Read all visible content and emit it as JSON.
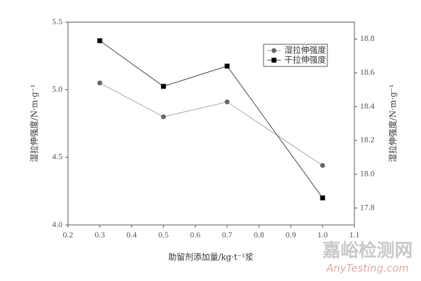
{
  "chart_data": {
    "type": "line",
    "x_label": "助留剂添加量/kg·t⁻¹浆",
    "y_label": "湿拉伸强度/N·m·g⁻¹",
    "y2_label": "湿拉伸强度/N·m·g⁻¹",
    "x": [
      0.3,
      0.5,
      0.7,
      1.0
    ],
    "series": [
      {
        "name": "湿拉伸强度",
        "color": "#666666",
        "line_color": "#aaaaaa",
        "marker": "circle",
        "values": [
          5.05,
          4.8,
          4.91,
          4.44
        ]
      },
      {
        "name": "干拉伸强度",
        "color": "#000000",
        "line_color": "#444444",
        "marker": "square",
        "axis": "y2",
        "values": [
          18.79,
          18.52,
          18.64,
          17.86
        ]
      }
    ],
    "xlim": [
      0.2,
      1.1
    ],
    "xticks": [
      0.2,
      0.3,
      0.4,
      0.5,
      0.6,
      0.7,
      0.8,
      0.9,
      {
        "value": 1.0,
        "label": "1.0"
      },
      1.1
    ],
    "ylim": [
      4.0,
      5.5
    ],
    "yticks": [
      {
        "value": 4.0,
        "label": "4.0"
      },
      4.5,
      {
        "value": 5.0,
        "label": "5.0"
      },
      5.5
    ],
    "y2lim": [
      17.7,
      18.9
    ],
    "y2ticks": [
      17.8,
      {
        "value": 18.0,
        "label": "18.0"
      },
      18.2,
      18.4,
      18.6,
      18.8
    ],
    "legend": "upper right",
    "watermark": [
      "嘉峪检测网",
      "AnyTesting.com"
    ]
  }
}
